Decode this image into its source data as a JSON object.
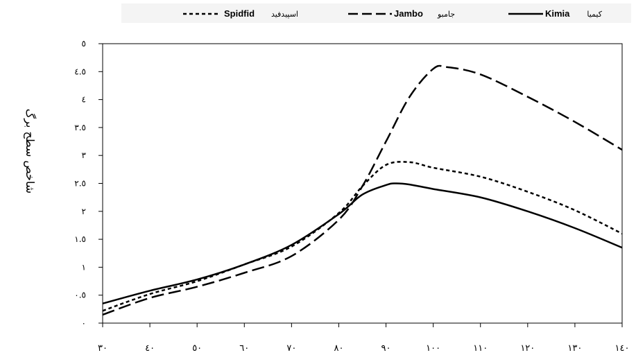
{
  "chart_data": {
    "type": "line",
    "title": "",
    "xlabel": "",
    "ylabel": "شاخص سطح برگ",
    "x_ticks": [
      "۳۰",
      "٤۰",
      "٥۰",
      "٦۰",
      "۷۰",
      "۸۰",
      "۹۰",
      "۱۰۰",
      "۱۱۰",
      "۱۲۰",
      "۱۳۰",
      "۱٤۰"
    ],
    "y_ticks": [
      "٠",
      "٠.٥",
      "١",
      "١.٥",
      "٢",
      "٢.٥",
      "٣",
      "٣.٥",
      "٤",
      "٤.٥",
      "٥"
    ],
    "xlim": [
      30,
      140
    ],
    "ylim": [
      0,
      5
    ],
    "grid": false,
    "legend_position": "top",
    "series": [
      {
        "name": "Spidfid",
        "name_fa": "اسپیدفید",
        "dash": "short-dash",
        "x": [
          30,
          40,
          50,
          60,
          70,
          80,
          85,
          90,
          95,
          100,
          110,
          120,
          130,
          140
        ],
        "y": [
          0.22,
          0.52,
          0.75,
          1.05,
          1.37,
          1.97,
          2.45,
          2.83,
          2.88,
          2.78,
          2.62,
          2.35,
          2.02,
          1.6
        ]
      },
      {
        "name": "Jambo",
        "name_fa": "جامبو",
        "dash": "long-dash",
        "x": [
          30,
          40,
          50,
          60,
          70,
          80,
          85,
          90,
          95,
          100,
          103,
          110,
          120,
          130,
          140
        ],
        "y": [
          0.15,
          0.45,
          0.65,
          0.9,
          1.2,
          1.85,
          2.45,
          3.25,
          4.05,
          4.55,
          4.58,
          4.45,
          4.05,
          3.6,
          3.1
        ]
      },
      {
        "name": "Kimia",
        "name_fa": "کیمیا",
        "dash": "solid",
        "x": [
          30,
          40,
          50,
          60,
          70,
          80,
          85,
          90,
          92,
          95,
          100,
          110,
          120,
          130,
          140
        ],
        "y": [
          0.35,
          0.58,
          0.78,
          1.05,
          1.4,
          1.95,
          2.3,
          2.47,
          2.5,
          2.48,
          2.4,
          2.25,
          2.0,
          1.7,
          1.35
        ]
      }
    ]
  }
}
